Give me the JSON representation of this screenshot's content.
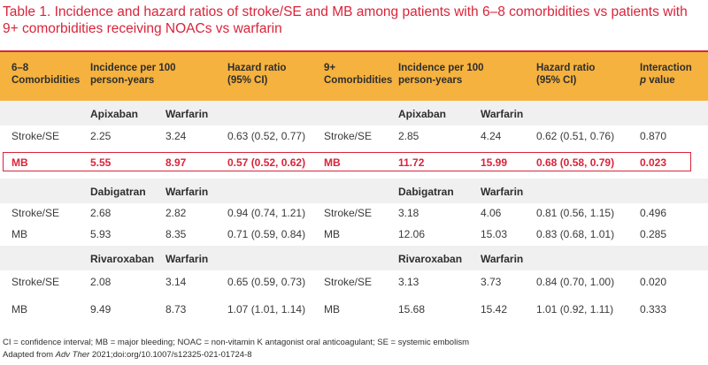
{
  "title": "Table 1. Incidence and hazard ratios of stroke/SE and MB among patients with 6–8 comorbidities vs patients with 9+ comorbidities receiving NOACs vs warfarin",
  "header": {
    "col1_line1": "6–8",
    "col1_line2": "Comorbidities",
    "col2_line1": "Incidence per 100",
    "col2_line2": "person-years",
    "col3_line1": "Hazard ratio",
    "col3_line2": "(95% CI)",
    "col4_line1": "9+",
    "col4_line2": "Comorbidities",
    "col5_line1": "Incidence per 100",
    "col5_line2": "person-years",
    "col6_line1": "Hazard ratio",
    "col6_line2": "(95% CI)",
    "col7_line1": "Interaction",
    "col7_line2_p": "p",
    "col7_line2_rest": " value"
  },
  "sections": [
    {
      "drug_left": "Apixaban",
      "warf_left": "Warfarin",
      "drug_right": "Apixaban",
      "warf_right": "Warfarin",
      "rows": [
        {
          "label_l": "Stroke/SE",
          "a": "2.25",
          "b": "3.24",
          "hr_l": "0.63 (0.52, 0.77)",
          "label_r": "Stroke/SE",
          "c": "2.85",
          "d": "4.24",
          "hr_r": "0.62 (0.51, 0.76)",
          "p": "0.870"
        },
        {
          "label_l": "MB",
          "a": "5.55",
          "b": "8.97",
          "hr_l": "0.57 (0.52, 0.62)",
          "label_r": "MB",
          "c": "11.72",
          "d": "15.99",
          "hr_r": "0.68 (0.58, 0.79)",
          "p": "0.023"
        }
      ]
    },
    {
      "drug_left": "Dabigatran",
      "warf_left": "Warfarin",
      "drug_right": "Dabigatran",
      "warf_right": "Warfarin",
      "rows": [
        {
          "label_l": "Stroke/SE",
          "a": "2.68",
          "b": "2.82",
          "hr_l": "0.94 (0.74, 1.21)",
          "label_r": "Stroke/SE",
          "c": "3.18",
          "d": "4.06",
          "hr_r": "0.81 (0.56, 1.15)",
          "p": "0.496"
        },
        {
          "label_l": "MB",
          "a": "5.93",
          "b": "8.35",
          "hr_l": "0.71 (0.59, 0.84)",
          "label_r": "MB",
          "c": "12.06",
          "d": "15.03",
          "hr_r": "0.83 (0.68, 1.01)",
          "p": "0.285"
        }
      ]
    },
    {
      "drug_left": "Rivaroxaban",
      "warf_left": "Warfarin",
      "drug_right": "Rivaroxaban",
      "warf_right": "Warfarin",
      "rows": [
        {
          "label_l": "Stroke/SE",
          "a": "2.08",
          "b": "3.14",
          "hr_l": "0.65 (0.59, 0.73)",
          "label_r": "Stroke/SE",
          "c": "3.13",
          "d": "3.73",
          "hr_r": "0.84 (0.70, 1.00)",
          "p": "0.020"
        },
        {
          "label_l": "MB",
          "a": "9.49",
          "b": "8.73",
          "hr_l": "1.07 (1.01, 1.14)",
          "label_r": "MB",
          "c": "15.68",
          "d": "15.42",
          "hr_r": "1.01 (0.92, 1.11)",
          "p": "0.333"
        }
      ]
    }
  ],
  "footer": {
    "abbreviations": "CI = confidence interval; MB = major bleeding; NOAC = non-vitamin K antagonist oral anticoagulant; SE = systemic embolism",
    "adapted_prefix": "Adapted from ",
    "journal": "Adv Ther",
    "adapted_rest": " 2021;doi:org/10.1007/s12325-021-01724-8"
  },
  "colors": {
    "title_red": "#d9243a",
    "header_orange": "#f5b23e",
    "band_gray": "#f0f0f0"
  }
}
